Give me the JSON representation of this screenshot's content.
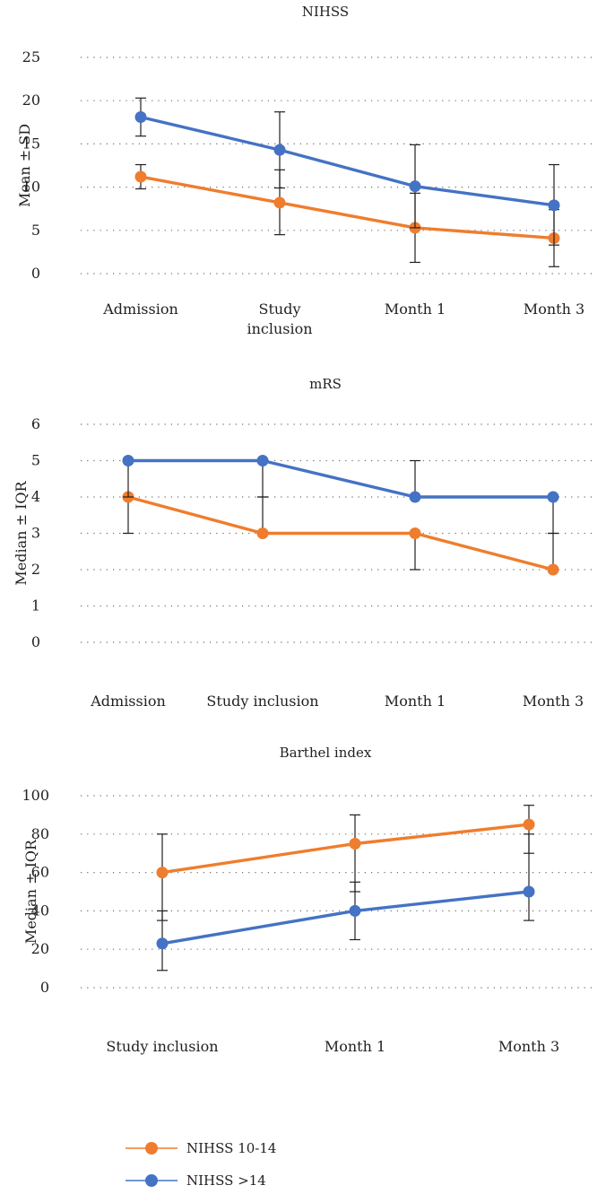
{
  "colors": {
    "orange": "#ef7d2d",
    "blue": "#4472c4"
  },
  "legend": [
    {
      "label": "NIHSS 10-14",
      "color": "#ef7d2d"
    },
    {
      "label": "NIHSS >14",
      "color": "#4472c4"
    }
  ],
  "chart_data": [
    {
      "type": "line",
      "title": "NIHSS",
      "ylabel": "Mean ± SD",
      "xlabel": "",
      "ylim": [
        0,
        25
      ],
      "yticks": [
        0,
        5,
        10,
        15,
        20,
        25
      ],
      "categories": [
        "Admission",
        "Study inclusion",
        "Month 1",
        "Month 3"
      ],
      "category_labels": [
        [
          "Admission"
        ],
        [
          "Study",
          "inclusion"
        ],
        [
          "Month 1"
        ],
        [
          "Month 3"
        ]
      ],
      "grid": true,
      "series": [
        {
          "name": "NIHSS 10-14",
          "color": "#ef7d2d",
          "values": [
            11.2,
            8.2,
            5.3,
            4.1
          ],
          "err_low": [
            9.8,
            4.5,
            1.3,
            0.8
          ],
          "err_high": [
            12.6,
            12.0,
            9.3,
            7.4
          ]
        },
        {
          "name": "NIHSS >14",
          "color": "#4472c4",
          "values": [
            18.1,
            14.3,
            10.1,
            7.9
          ],
          "err_low": [
            15.9,
            9.9,
            5.3,
            3.3
          ],
          "err_high": [
            20.3,
            18.7,
            14.9,
            12.6
          ]
        }
      ]
    },
    {
      "type": "line",
      "title": "mRS",
      "ylabel": "Median ± IQR",
      "xlabel": "",
      "ylim": [
        0,
        6
      ],
      "yticks": [
        0,
        1,
        2,
        3,
        4,
        5,
        6
      ],
      "categories": [
        "Admission",
        "Study inclusion",
        "Month 1",
        "Month 3"
      ],
      "category_labels": [
        [
          "Admission"
        ],
        [
          "Study inclusion"
        ],
        [
          "Month 1"
        ],
        [
          "Month 3"
        ]
      ],
      "grid": true,
      "series": [
        {
          "name": "NIHSS 10-14",
          "color": "#ef7d2d",
          "values": [
            4,
            3,
            3,
            2
          ],
          "err_low": [
            3,
            3,
            2,
            2
          ],
          "err_high": [
            4,
            4,
            3,
            3
          ]
        },
        {
          "name": "NIHSS >14",
          "color": "#4472c4",
          "values": [
            5,
            5,
            4,
            4
          ],
          "err_low": [
            4,
            4,
            4,
            3
          ],
          "err_high": [
            5,
            5,
            5,
            4
          ]
        }
      ]
    },
    {
      "type": "line",
      "title": "Barthel index",
      "ylabel": "Median ± IQR",
      "xlabel": "",
      "ylim": [
        0,
        100
      ],
      "yticks": [
        0,
        20,
        40,
        60,
        80,
        100
      ],
      "categories": [
        "Study inclusion",
        "Month 1",
        "Month 3"
      ],
      "category_labels": [
        [
          "Study inclusion"
        ],
        [
          "Month 1"
        ],
        [
          "Month 3"
        ]
      ],
      "grid": true,
      "series": [
        {
          "name": "NIHSS 10-14",
          "color": "#ef7d2d",
          "values": [
            60,
            75,
            85
          ],
          "err_low": [
            35,
            50,
            70
          ],
          "err_high": [
            80,
            90,
            95
          ]
        },
        {
          "name": "NIHSS >14",
          "color": "#4472c4",
          "values": [
            23,
            40,
            50
          ],
          "err_low": [
            9,
            25,
            35
          ],
          "err_high": [
            40,
            55,
            80
          ]
        }
      ]
    }
  ]
}
